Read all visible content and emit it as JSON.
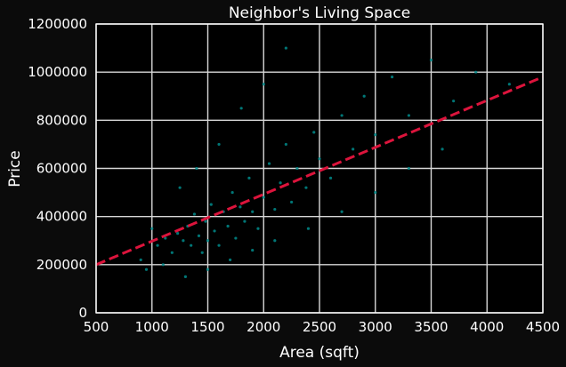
{
  "chart_data": {
    "type": "scatter",
    "title": "Neighbor's Living Space",
    "xlabel": "Area (sqft)",
    "ylabel": "Price",
    "xlim": [
      500,
      4500
    ],
    "ylim": [
      0,
      1200000
    ],
    "x_ticks": [
      "500",
      "1000",
      "1500",
      "2000",
      "2500",
      "3000",
      "3500",
      "4000",
      "4500"
    ],
    "y_ticks": [
      "0",
      "200000",
      "400000",
      "600000",
      "800000",
      "1000000",
      "1200000"
    ],
    "grid": true,
    "series": [
      {
        "color": "#008b8b",
        "points": [
          [
            1050,
            280000
          ],
          [
            1120,
            310000
          ],
          [
            1180,
            250000
          ],
          [
            1230,
            330000
          ],
          [
            1280,
            300000
          ],
          [
            1320,
            360000
          ],
          [
            1350,
            280000
          ],
          [
            1380,
            410000
          ],
          [
            1420,
            320000
          ],
          [
            1450,
            250000
          ],
          [
            1480,
            380000
          ],
          [
            1500,
            300000
          ],
          [
            1530,
            450000
          ],
          [
            1560,
            340000
          ],
          [
            1600,
            280000
          ],
          [
            1640,
            420000
          ],
          [
            1680,
            360000
          ],
          [
            1720,
            500000
          ],
          [
            1750,
            310000
          ],
          [
            1790,
            440000
          ],
          [
            1830,
            380000
          ],
          [
            1870,
            560000
          ],
          [
            1900,
            420000
          ],
          [
            1950,
            350000
          ],
          [
            2000,
            480000
          ],
          [
            2050,
            620000
          ],
          [
            2100,
            430000
          ],
          [
            2150,
            540000
          ],
          [
            2200,
            700000
          ],
          [
            2250,
            460000
          ],
          [
            2300,
            600000
          ],
          [
            2380,
            520000
          ],
          [
            2450,
            750000
          ],
          [
            2500,
            640000
          ],
          [
            2600,
            560000
          ],
          [
            2700,
            820000
          ],
          [
            2800,
            680000
          ],
          [
            2900,
            900000
          ],
          [
            3000,
            740000
          ],
          [
            3150,
            980000
          ],
          [
            3300,
            820000
          ],
          [
            3500,
            1050000
          ],
          [
            3700,
            880000
          ],
          [
            3900,
            1000000
          ],
          [
            4200,
            950000
          ],
          [
            900,
            220000
          ],
          [
            950,
            180000
          ],
          [
            1000,
            350000
          ],
          [
            1100,
            200000
          ],
          [
            1250,
            520000
          ],
          [
            1400,
            600000
          ],
          [
            1600,
            700000
          ],
          [
            1800,
            850000
          ],
          [
            2000,
            950000
          ],
          [
            2200,
            1100000
          ],
          [
            1300,
            150000
          ],
          [
            1500,
            180000
          ],
          [
            1700,
            220000
          ],
          [
            1900,
            260000
          ],
          [
            2100,
            300000
          ],
          [
            2400,
            350000
          ],
          [
            2700,
            420000
          ],
          [
            3000,
            500000
          ],
          [
            3300,
            600000
          ],
          [
            3600,
            680000
          ]
        ]
      }
    ],
    "trendline": {
      "color": "#dc143c",
      "style": "dashed",
      "x": [
        500,
        4500
      ],
      "y": [
        200000,
        980000
      ]
    }
  }
}
